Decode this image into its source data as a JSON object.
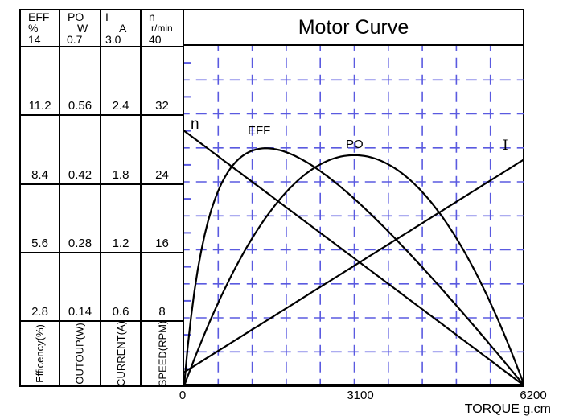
{
  "title": "Motor Curve",
  "x_axis": {
    "title": "TORQUE g.cm",
    "tick_labels": [
      "0",
      "3100",
      "6200"
    ]
  },
  "table": {
    "columns": [
      {
        "name": "EFF",
        "unit": "%",
        "scale_max": "14",
        "values": [
          "11.2",
          "8.4",
          "5.6",
          "2.8"
        ],
        "footer": "Efficency(%)"
      },
      {
        "name": "PO",
        "unit": "W",
        "scale_max": "0.7",
        "values": [
          "0.56",
          "0.42",
          "0.28",
          "0.14"
        ],
        "footer": "OUTOUP(W)"
      },
      {
        "name": "I",
        "unit": "A",
        "scale_max": "3.0",
        "values": [
          "2.4",
          "1.8",
          "1.2",
          "0.6"
        ],
        "footer": "CURRENT(A)"
      },
      {
        "name": "n",
        "unit": "r/min",
        "scale_max": "40",
        "values": [
          "32",
          "24",
          "16",
          "8"
        ],
        "footer": "SPEED(RPM)"
      }
    ]
  },
  "chart_data": {
    "type": "line",
    "title": "Motor Curve",
    "xlabel": "TORQUE g.cm",
    "x_range": [
      0,
      6200
    ],
    "x_ticks": [
      0,
      3100,
      6200
    ],
    "grid": {
      "columns": 10,
      "rows": 10,
      "style": "dashed"
    },
    "series": [
      {
        "name": "n",
        "unit": "r/min",
        "axis_range": [
          0,
          40
        ],
        "points": [
          [
            0,
            30
          ],
          [
            3100,
            15
          ],
          [
            6200,
            0
          ]
        ],
        "description": "speed line: no-load 30 r/min falling linearly to 0 at stall torque 6200 g.cm",
        "model": {
          "type": "linear",
          "v0": 30,
          "v1": 0
        }
      },
      {
        "name": "EFF",
        "unit": "%",
        "axis_range": [
          0,
          14
        ],
        "points": [
          [
            0,
            0
          ],
          [
            1490,
            9.8
          ],
          [
            6200,
            0
          ]
        ],
        "description": "efficiency curve: steep rise, peak about 9.8% near 1500 g.cm, back to 0 at stall",
        "model": {
          "type": "rational",
          "C": 33.9,
          "a": 0.2,
          "b": 1.8
        }
      },
      {
        "name": "PO",
        "unit": "W",
        "axis_range": [
          0,
          0.7
        ],
        "points": [
          [
            0,
            0
          ],
          [
            3100,
            0.475
          ],
          [
            6200,
            0
          ]
        ],
        "description": "output power parabola: peak about 0.48 W at 3100 g.cm",
        "model": {
          "type": "parabola",
          "vpeak": 0.475
        }
      },
      {
        "name": "I",
        "unit": "A",
        "axis_range": [
          0,
          3.0
        ],
        "points": [
          [
            0,
            0.12
          ],
          [
            6200,
            2.0
          ]
        ],
        "description": "current line: 0.12 A no-load rising linearly to 2.0 A at stall",
        "model": {
          "type": "linear",
          "v0": 0.12,
          "v1": 2.0
        }
      }
    ],
    "curve_labels": [
      "n",
      "EFF",
      "PO",
      "I"
    ]
  },
  "colors": {
    "grid_blue": "#5a5ae0",
    "line_black": "#000000",
    "background": "#ffffff"
  }
}
